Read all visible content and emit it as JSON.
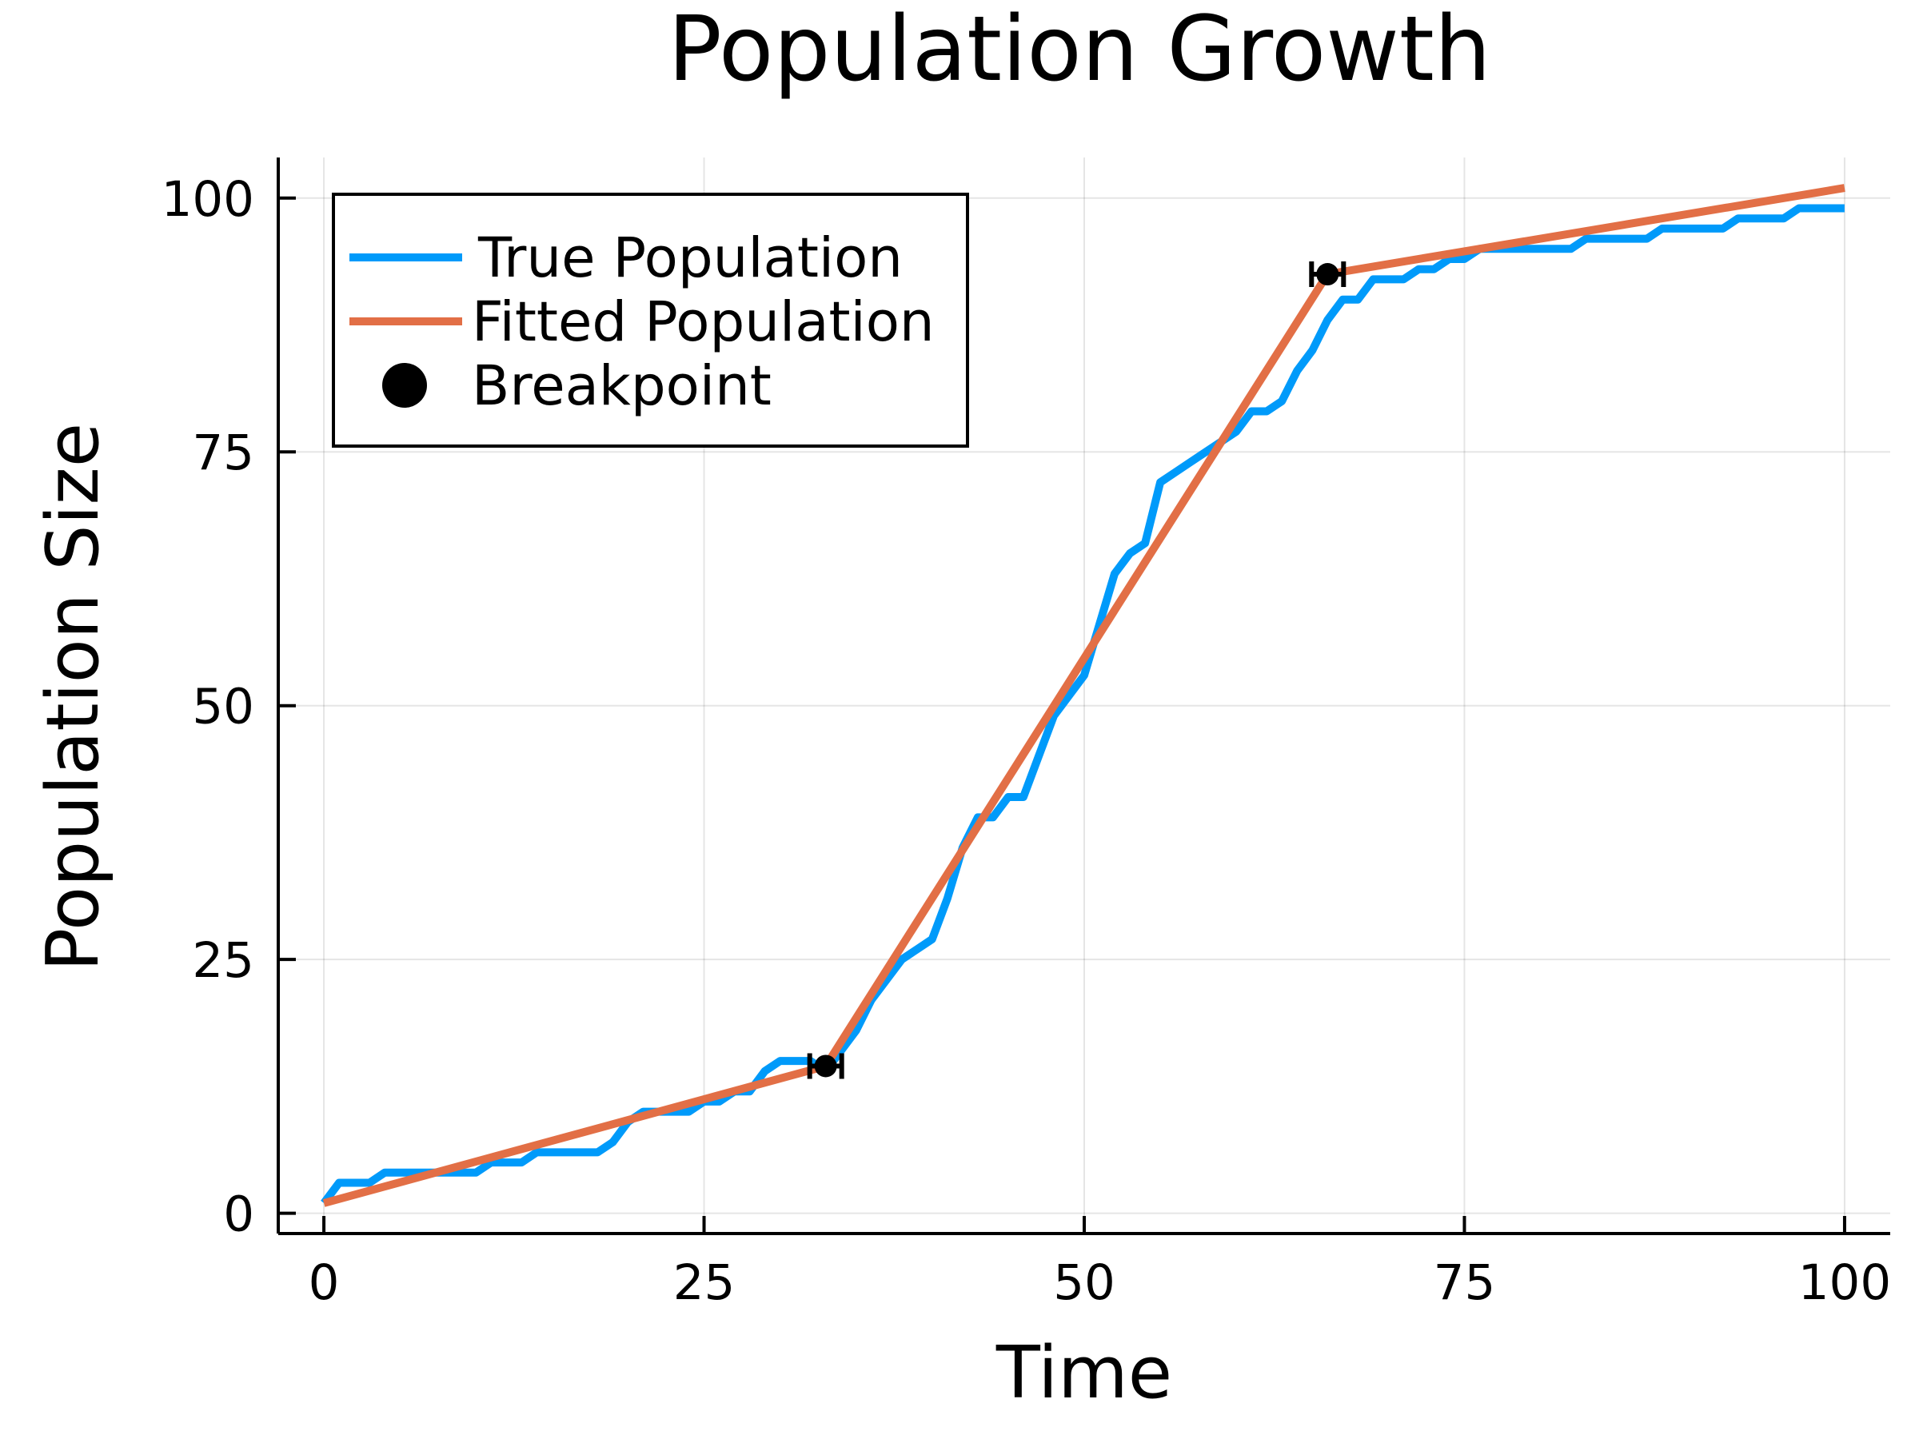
{
  "chart_data": {
    "type": "line",
    "title": "Population Growth",
    "xlabel": "Time",
    "ylabel": "Population Size",
    "xlim": [
      -3,
      103
    ],
    "ylim": [
      -2,
      104
    ],
    "xticks": [
      0,
      25,
      50,
      75,
      100
    ],
    "yticks": [
      0,
      25,
      50,
      75,
      100
    ],
    "xtick_labels": [
      "0",
      "25",
      "50",
      "75",
      "100"
    ],
    "ytick_labels": [
      "0",
      "25",
      "50",
      "75",
      "100"
    ],
    "grid": true,
    "legend_position": "top-left",
    "series": [
      {
        "name": "True Population",
        "type": "line",
        "color": "#009AFA",
        "x": [
          0,
          1,
          2,
          3,
          4,
          5,
          6,
          7,
          8,
          9,
          10,
          11,
          12,
          13,
          14,
          15,
          16,
          17,
          18,
          19,
          20,
          21,
          22,
          23,
          24,
          25,
          26,
          27,
          28,
          29,
          30,
          31,
          32,
          33,
          34,
          35,
          36,
          37,
          38,
          39,
          40,
          41,
          42,
          43,
          44,
          45,
          46,
          47,
          48,
          49,
          50,
          51,
          52,
          53,
          54,
          55,
          56,
          57,
          58,
          59,
          60,
          61,
          62,
          63,
          64,
          65,
          66,
          67,
          68,
          69,
          70,
          71,
          72,
          73,
          74,
          75,
          76,
          77,
          78,
          79,
          80,
          81,
          82,
          83,
          84,
          85,
          86,
          87,
          88,
          89,
          90,
          91,
          92,
          93,
          94,
          95,
          96,
          97,
          98,
          99,
          100
        ],
        "y": [
          1,
          3,
          3,
          3,
          4,
          4,
          4,
          4,
          4,
          4,
          4,
          5,
          5,
          5,
          6,
          6,
          6,
          6,
          6,
          7,
          9,
          10,
          10,
          10,
          10,
          11,
          11,
          12,
          12,
          14,
          15,
          15,
          15,
          14,
          16,
          18,
          21,
          23,
          25,
          26,
          27,
          31,
          36,
          39,
          39,
          41,
          41,
          45,
          49,
          51,
          53,
          58,
          63,
          65,
          66,
          72,
          73,
          74,
          75,
          76,
          77,
          79,
          79,
          80,
          83,
          85,
          88,
          90,
          90,
          92,
          92,
          92,
          93,
          93,
          94,
          94,
          95,
          95,
          95,
          95,
          95,
          95,
          95,
          96,
          96,
          96,
          96,
          96,
          97,
          97,
          97,
          97,
          97,
          98,
          98,
          98,
          98,
          99,
          99,
          99,
          99
        ]
      },
      {
        "name": "Fitted Population",
        "type": "line",
        "color": "#E26F46",
        "x": [
          0,
          33,
          66,
          100
        ],
        "y": [
          1,
          14.5,
          92.5,
          101
        ]
      },
      {
        "name": "Breakpoint",
        "type": "scatter",
        "color": "#000000",
        "x": [
          33,
          66
        ],
        "y": [
          14.5,
          92.5
        ]
      }
    ]
  }
}
